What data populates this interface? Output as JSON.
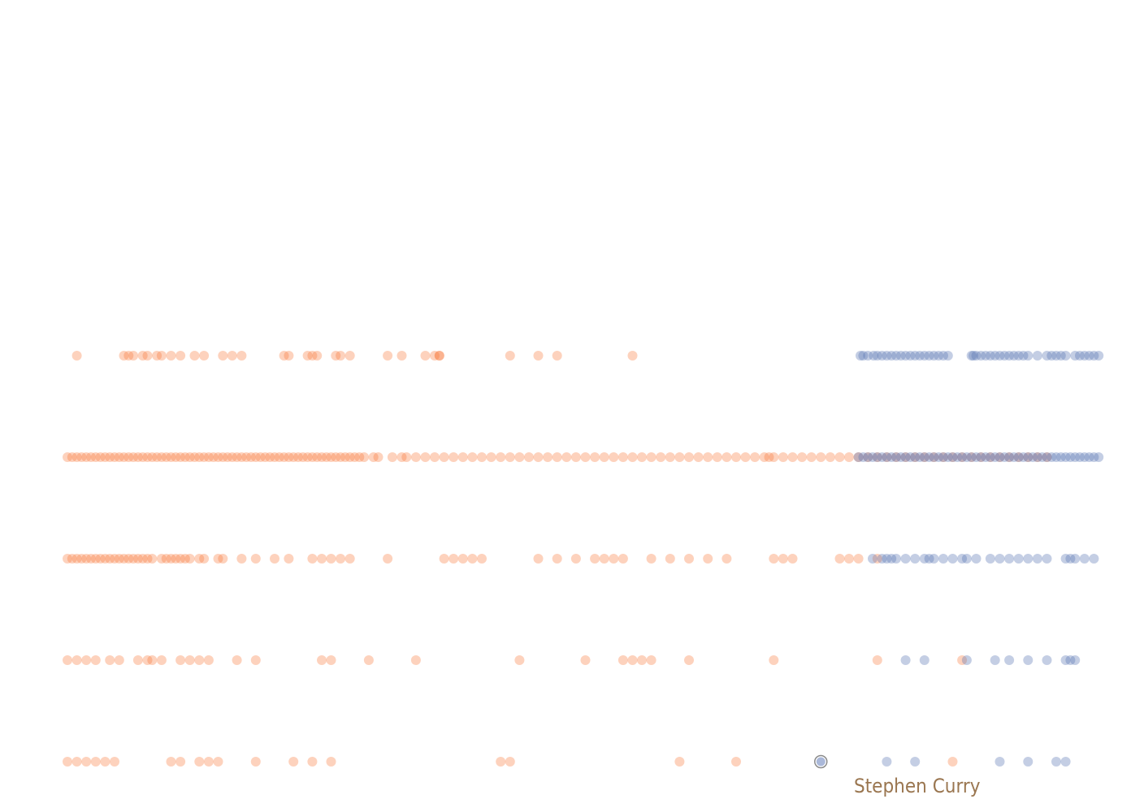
{
  "chart_data": {
    "type": "scatter",
    "title": "",
    "xlabel": "",
    "ylabel": "",
    "colors": {
      "orange": "#f97331",
      "blue": "#5672b3",
      "label": "#9a7650"
    },
    "highlight": {
      "label": "Stephen Curry",
      "row": 4,
      "x": 0.8
    },
    "rows": [
      {
        "orange": [
          0.01,
          0.06,
          0.065,
          0.07,
          0.08,
          0.085,
          0.095,
          0.1,
          0.11,
          0.12,
          0.135,
          0.145,
          0.165,
          0.175,
          0.185,
          0.23,
          0.235,
          0.255,
          0.26,
          0.265,
          0.285,
          0.29,
          0.3,
          0.38,
          0.39,
          0.395,
          0.52,
          0.5,
          0.355,
          0.34,
          0.395,
          0.47,
          0.6
        ],
        "blue": [
          0.842,
          0.845,
          0.85,
          0.856,
          0.86,
          0.865,
          0.87,
          0.875,
          0.88,
          0.885,
          0.89,
          0.895,
          0.9,
          0.905,
          0.91,
          0.915,
          0.92,
          0.925,
          0.93,
          0.935,
          0.96,
          0.962,
          0.965,
          0.97,
          0.975,
          0.98,
          0.985,
          0.99,
          0.995,
          1.0,
          1.005,
          1.01,
          1.015,
          1.02,
          1.03,
          1.04,
          1.045,
          1.05,
          1.055,
          1.06,
          1.07,
          1.075,
          1.08,
          1.085,
          1.09,
          1.095
        ]
      },
      {
        "orange": [
          0.0,
          0.005,
          0.01,
          0.015,
          0.02,
          0.025,
          0.03,
          0.035,
          0.04,
          0.045,
          0.05,
          0.055,
          0.06,
          0.065,
          0.07,
          0.075,
          0.08,
          0.085,
          0.09,
          0.095,
          0.1,
          0.105,
          0.11,
          0.115,
          0.12,
          0.125,
          0.13,
          0.135,
          0.14,
          0.145,
          0.15,
          0.155,
          0.16,
          0.165,
          0.17,
          0.175,
          0.18,
          0.185,
          0.19,
          0.195,
          0.2,
          0.205,
          0.21,
          0.215,
          0.22,
          0.225,
          0.23,
          0.235,
          0.24,
          0.245,
          0.25,
          0.255,
          0.26,
          0.265,
          0.27,
          0.275,
          0.28,
          0.285,
          0.29,
          0.295,
          0.3,
          0.305,
          0.31,
          0.315,
          0.325,
          0.33,
          0.345,
          0.355,
          0.36,
          0.37,
          0.38,
          0.39,
          0.4,
          0.41,
          0.42,
          0.43,
          0.44,
          0.45,
          0.46,
          0.47,
          0.48,
          0.49,
          0.5,
          0.51,
          0.52,
          0.53,
          0.54,
          0.55,
          0.56,
          0.57,
          0.58,
          0.59,
          0.6,
          0.61,
          0.62,
          0.63,
          0.64,
          0.65,
          0.66,
          0.67,
          0.68,
          0.69,
          0.7,
          0.71,
          0.72,
          0.73,
          0.74,
          0.745,
          0.75,
          0.76,
          0.77,
          0.78,
          0.79,
          0.8,
          0.81,
          0.82,
          0.83,
          0.84,
          0.85,
          0.86,
          0.87,
          0.88,
          0.89,
          0.9,
          0.91,
          0.92,
          0.93,
          0.94,
          0.95,
          0.96,
          0.97,
          0.98,
          0.99,
          1.0,
          1.01,
          1.02,
          1.03,
          1.04
        ],
        "blue": [
          0.84,
          0.845,
          0.85,
          0.855,
          0.86,
          0.865,
          0.87,
          0.875,
          0.88,
          0.885,
          0.89,
          0.895,
          0.9,
          0.905,
          0.91,
          0.915,
          0.92,
          0.925,
          0.93,
          0.935,
          0.94,
          0.945,
          0.95,
          0.955,
          0.96,
          0.965,
          0.97,
          0.975,
          0.98,
          0.985,
          0.99,
          0.995,
          1.0,
          1.005,
          1.01,
          1.015,
          1.02,
          1.025,
          1.03,
          1.035,
          1.04,
          1.045,
          1.05,
          1.055,
          1.06,
          1.065,
          1.07,
          1.075,
          1.08,
          1.085,
          1.09,
          1.095
        ]
      },
      {
        "orange": [
          0.0,
          0.005,
          0.01,
          0.015,
          0.02,
          0.025,
          0.03,
          0.035,
          0.04,
          0.045,
          0.05,
          0.055,
          0.06,
          0.065,
          0.07,
          0.075,
          0.08,
          0.085,
          0.09,
          0.1,
          0.105,
          0.11,
          0.115,
          0.12,
          0.125,
          0.13,
          0.14,
          0.145,
          0.16,
          0.165,
          0.185,
          0.2,
          0.22,
          0.235,
          0.26,
          0.27,
          0.28,
          0.29,
          0.3,
          0.34,
          0.4,
          0.41,
          0.42,
          0.43,
          0.44,
          0.5,
          0.52,
          0.54,
          0.56,
          0.57,
          0.58,
          0.59,
          0.62,
          0.64,
          0.66,
          0.68,
          0.7,
          0.75,
          0.76,
          0.77,
          0.82,
          0.83,
          0.84,
          0.86
        ],
        "blue": [
          0.855,
          0.865,
          0.87,
          0.875,
          0.88,
          0.89,
          0.9,
          0.91,
          0.915,
          0.92,
          0.93,
          0.94,
          0.95,
          0.955,
          0.965,
          0.98,
          0.99,
          1.0,
          1.01,
          1.02,
          1.03,
          1.04,
          1.06,
          1.065,
          1.07,
          1.08,
          1.09
        ]
      },
      {
        "orange": [
          0.0,
          0.01,
          0.02,
          0.03,
          0.045,
          0.055,
          0.075,
          0.085,
          0.09,
          0.1,
          0.12,
          0.13,
          0.14,
          0.15,
          0.18,
          0.2,
          0.27,
          0.28,
          0.32,
          0.37,
          0.48,
          0.55,
          0.59,
          0.6,
          0.61,
          0.62,
          0.66,
          0.75,
          0.86,
          0.95
        ],
        "blue": [
          0.89,
          0.91,
          0.955,
          0.985,
          1.0,
          1.02,
          1.04,
          1.06,
          1.065,
          1.07
        ]
      },
      {
        "orange": [
          0.0,
          0.01,
          0.02,
          0.03,
          0.04,
          0.05,
          0.11,
          0.12,
          0.14,
          0.15,
          0.16,
          0.2,
          0.24,
          0.26,
          0.28,
          0.46,
          0.47,
          0.65,
          0.71,
          0.94
        ],
        "blue": [
          0.87,
          0.9,
          0.99,
          1.02,
          1.05,
          1.06
        ]
      }
    ]
  }
}
